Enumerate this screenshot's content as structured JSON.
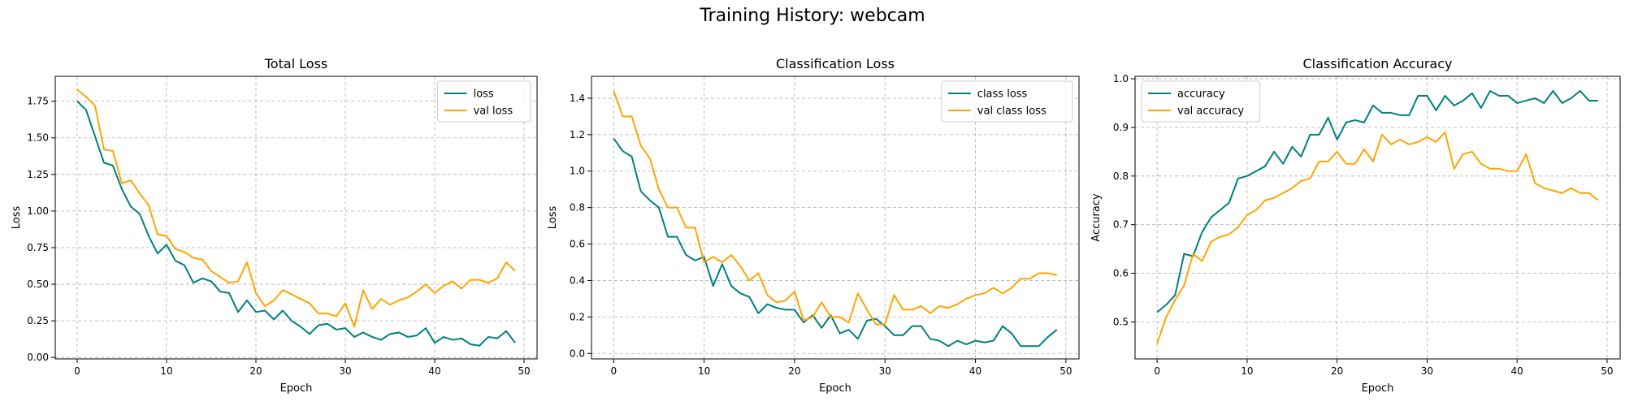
{
  "figure": {
    "title": "Training History: webcam"
  },
  "chart_data": [
    {
      "type": "line",
      "title": "Total Loss",
      "xlabel": "Epoch",
      "ylabel": "Loss",
      "xlim": [
        -2.45,
        51.45
      ],
      "ylim": [
        -0.01,
        1.92
      ],
      "xticks": [
        0,
        10,
        20,
        30,
        40,
        50
      ],
      "yticks": [
        0.0,
        0.25,
        0.5,
        0.75,
        1.0,
        1.25,
        1.5,
        1.75
      ],
      "ytick_format": 2,
      "grid": true,
      "legend": "top-right",
      "x": [
        0,
        1,
        2,
        3,
        4,
        5,
        6,
        7,
        8,
        9,
        10,
        11,
        12,
        13,
        14,
        15,
        16,
        17,
        18,
        19,
        20,
        21,
        22,
        23,
        24,
        25,
        26,
        27,
        28,
        29,
        30,
        31,
        32,
        33,
        34,
        35,
        36,
        37,
        38,
        39,
        40,
        41,
        42,
        43,
        44,
        45,
        46,
        47,
        48,
        49
      ],
      "series": [
        {
          "name": "loss",
          "color": "#008080",
          "values": [
            1.75,
            1.69,
            1.51,
            1.33,
            1.31,
            1.15,
            1.03,
            0.98,
            0.83,
            0.71,
            0.77,
            0.66,
            0.63,
            0.51,
            0.54,
            0.52,
            0.45,
            0.44,
            0.31,
            0.39,
            0.31,
            0.32,
            0.26,
            0.32,
            0.25,
            0.21,
            0.16,
            0.22,
            0.23,
            0.19,
            0.2,
            0.14,
            0.17,
            0.14,
            0.12,
            0.16,
            0.17,
            0.14,
            0.15,
            0.2,
            0.1,
            0.14,
            0.12,
            0.13,
            0.09,
            0.08,
            0.14,
            0.13,
            0.18,
            0.1
          ]
        },
        {
          "name": "val loss",
          "color": "#FFA500",
          "values": [
            1.83,
            1.78,
            1.72,
            1.42,
            1.41,
            1.19,
            1.21,
            1.12,
            1.04,
            0.84,
            0.83,
            0.74,
            0.72,
            0.68,
            0.67,
            0.59,
            0.55,
            0.51,
            0.52,
            0.65,
            0.44,
            0.35,
            0.39,
            0.46,
            0.43,
            0.4,
            0.37,
            0.3,
            0.3,
            0.28,
            0.37,
            0.21,
            0.46,
            0.33,
            0.4,
            0.36,
            0.39,
            0.41,
            0.45,
            0.5,
            0.44,
            0.49,
            0.52,
            0.47,
            0.53,
            0.53,
            0.51,
            0.54,
            0.65,
            0.59
          ]
        }
      ]
    },
    {
      "type": "line",
      "title": "Classification Loss",
      "xlabel": "Epoch",
      "ylabel": "Loss",
      "xlim": [
        -2.45,
        51.45
      ],
      "ylim": [
        -0.03,
        1.52
      ],
      "xticks": [
        0,
        10,
        20,
        30,
        40,
        50
      ],
      "yticks": [
        0.0,
        0.2,
        0.4,
        0.6,
        0.8,
        1.0,
        1.2,
        1.4
      ],
      "ytick_format": 1,
      "grid": true,
      "legend": "top-right",
      "x": [
        0,
        1,
        2,
        3,
        4,
        5,
        6,
        7,
        8,
        9,
        10,
        11,
        12,
        13,
        14,
        15,
        16,
        17,
        18,
        19,
        20,
        21,
        22,
        23,
        24,
        25,
        26,
        27,
        28,
        29,
        30,
        31,
        32,
        33,
        34,
        35,
        36,
        37,
        38,
        39,
        40,
        41,
        42,
        43,
        44,
        45,
        46,
        47,
        48,
        49
      ],
      "series": [
        {
          "name": "class loss",
          "color": "#008080",
          "values": [
            1.18,
            1.11,
            1.08,
            0.89,
            0.84,
            0.8,
            0.64,
            0.64,
            0.54,
            0.51,
            0.53,
            0.37,
            0.49,
            0.37,
            0.33,
            0.31,
            0.22,
            0.27,
            0.25,
            0.24,
            0.24,
            0.17,
            0.21,
            0.14,
            0.21,
            0.11,
            0.13,
            0.08,
            0.18,
            0.19,
            0.15,
            0.1,
            0.1,
            0.15,
            0.15,
            0.08,
            0.07,
            0.04,
            0.07,
            0.05,
            0.07,
            0.06,
            0.07,
            0.15,
            0.11,
            0.04,
            0.04,
            0.04,
            0.09,
            0.13
          ]
        },
        {
          "name": "val class loss",
          "color": "#FFA500",
          "values": [
            1.44,
            1.3,
            1.3,
            1.14,
            1.07,
            0.9,
            0.8,
            0.8,
            0.69,
            0.69,
            0.5,
            0.53,
            0.5,
            0.54,
            0.48,
            0.4,
            0.44,
            0.32,
            0.28,
            0.29,
            0.34,
            0.18,
            0.2,
            0.28,
            0.2,
            0.2,
            0.17,
            0.33,
            0.24,
            0.16,
            0.16,
            0.32,
            0.24,
            0.24,
            0.26,
            0.22,
            0.26,
            0.25,
            0.27,
            0.3,
            0.32,
            0.33,
            0.36,
            0.33,
            0.36,
            0.41,
            0.41,
            0.44,
            0.44,
            0.43
          ]
        }
      ]
    },
    {
      "type": "line",
      "title": "Classification Accuracy",
      "xlabel": "Epoch",
      "ylabel": "Accuracy",
      "xlim": [
        -2.45,
        51.45
      ],
      "ylim": [
        0.424,
        1.005
      ],
      "xticks": [
        0,
        10,
        20,
        30,
        40,
        50
      ],
      "yticks": [
        0.5,
        0.6,
        0.7,
        0.8,
        0.9,
        1.0
      ],
      "ytick_format": 1,
      "grid": true,
      "legend": "top-left",
      "x": [
        0,
        1,
        2,
        3,
        4,
        5,
        6,
        7,
        8,
        9,
        10,
        11,
        12,
        13,
        14,
        15,
        16,
        17,
        18,
        19,
        20,
        21,
        22,
        23,
        24,
        25,
        26,
        27,
        28,
        29,
        30,
        31,
        32,
        33,
        34,
        35,
        36,
        37,
        38,
        39,
        40,
        41,
        42,
        43,
        44,
        45,
        46,
        47,
        48,
        49
      ],
      "series": [
        {
          "name": "accuracy",
          "color": "#008080",
          "values": [
            0.52,
            0.535,
            0.555,
            0.64,
            0.635,
            0.685,
            0.715,
            0.73,
            0.745,
            0.795,
            0.8,
            0.81,
            0.82,
            0.85,
            0.825,
            0.86,
            0.84,
            0.885,
            0.885,
            0.92,
            0.875,
            0.91,
            0.915,
            0.91,
            0.945,
            0.93,
            0.93,
            0.925,
            0.925,
            0.965,
            0.965,
            0.935,
            0.965,
            0.945,
            0.955,
            0.97,
            0.94,
            0.975,
            0.965,
            0.965,
            0.95,
            0.955,
            0.96,
            0.95,
            0.975,
            0.95,
            0.96,
            0.975,
            0.955,
            0.955
          ]
        },
        {
          "name": "val accuracy",
          "color": "#FFA500",
          "values": [
            0.455,
            0.51,
            0.545,
            0.575,
            0.64,
            0.625,
            0.665,
            0.675,
            0.68,
            0.695,
            0.72,
            0.73,
            0.75,
            0.755,
            0.765,
            0.775,
            0.79,
            0.795,
            0.83,
            0.83,
            0.85,
            0.825,
            0.825,
            0.855,
            0.83,
            0.885,
            0.865,
            0.875,
            0.865,
            0.87,
            0.88,
            0.87,
            0.89,
            0.815,
            0.845,
            0.85,
            0.825,
            0.815,
            0.815,
            0.81,
            0.81,
            0.845,
            0.785,
            0.775,
            0.77,
            0.765,
            0.775,
            0.765,
            0.765,
            0.75
          ]
        }
      ]
    }
  ]
}
